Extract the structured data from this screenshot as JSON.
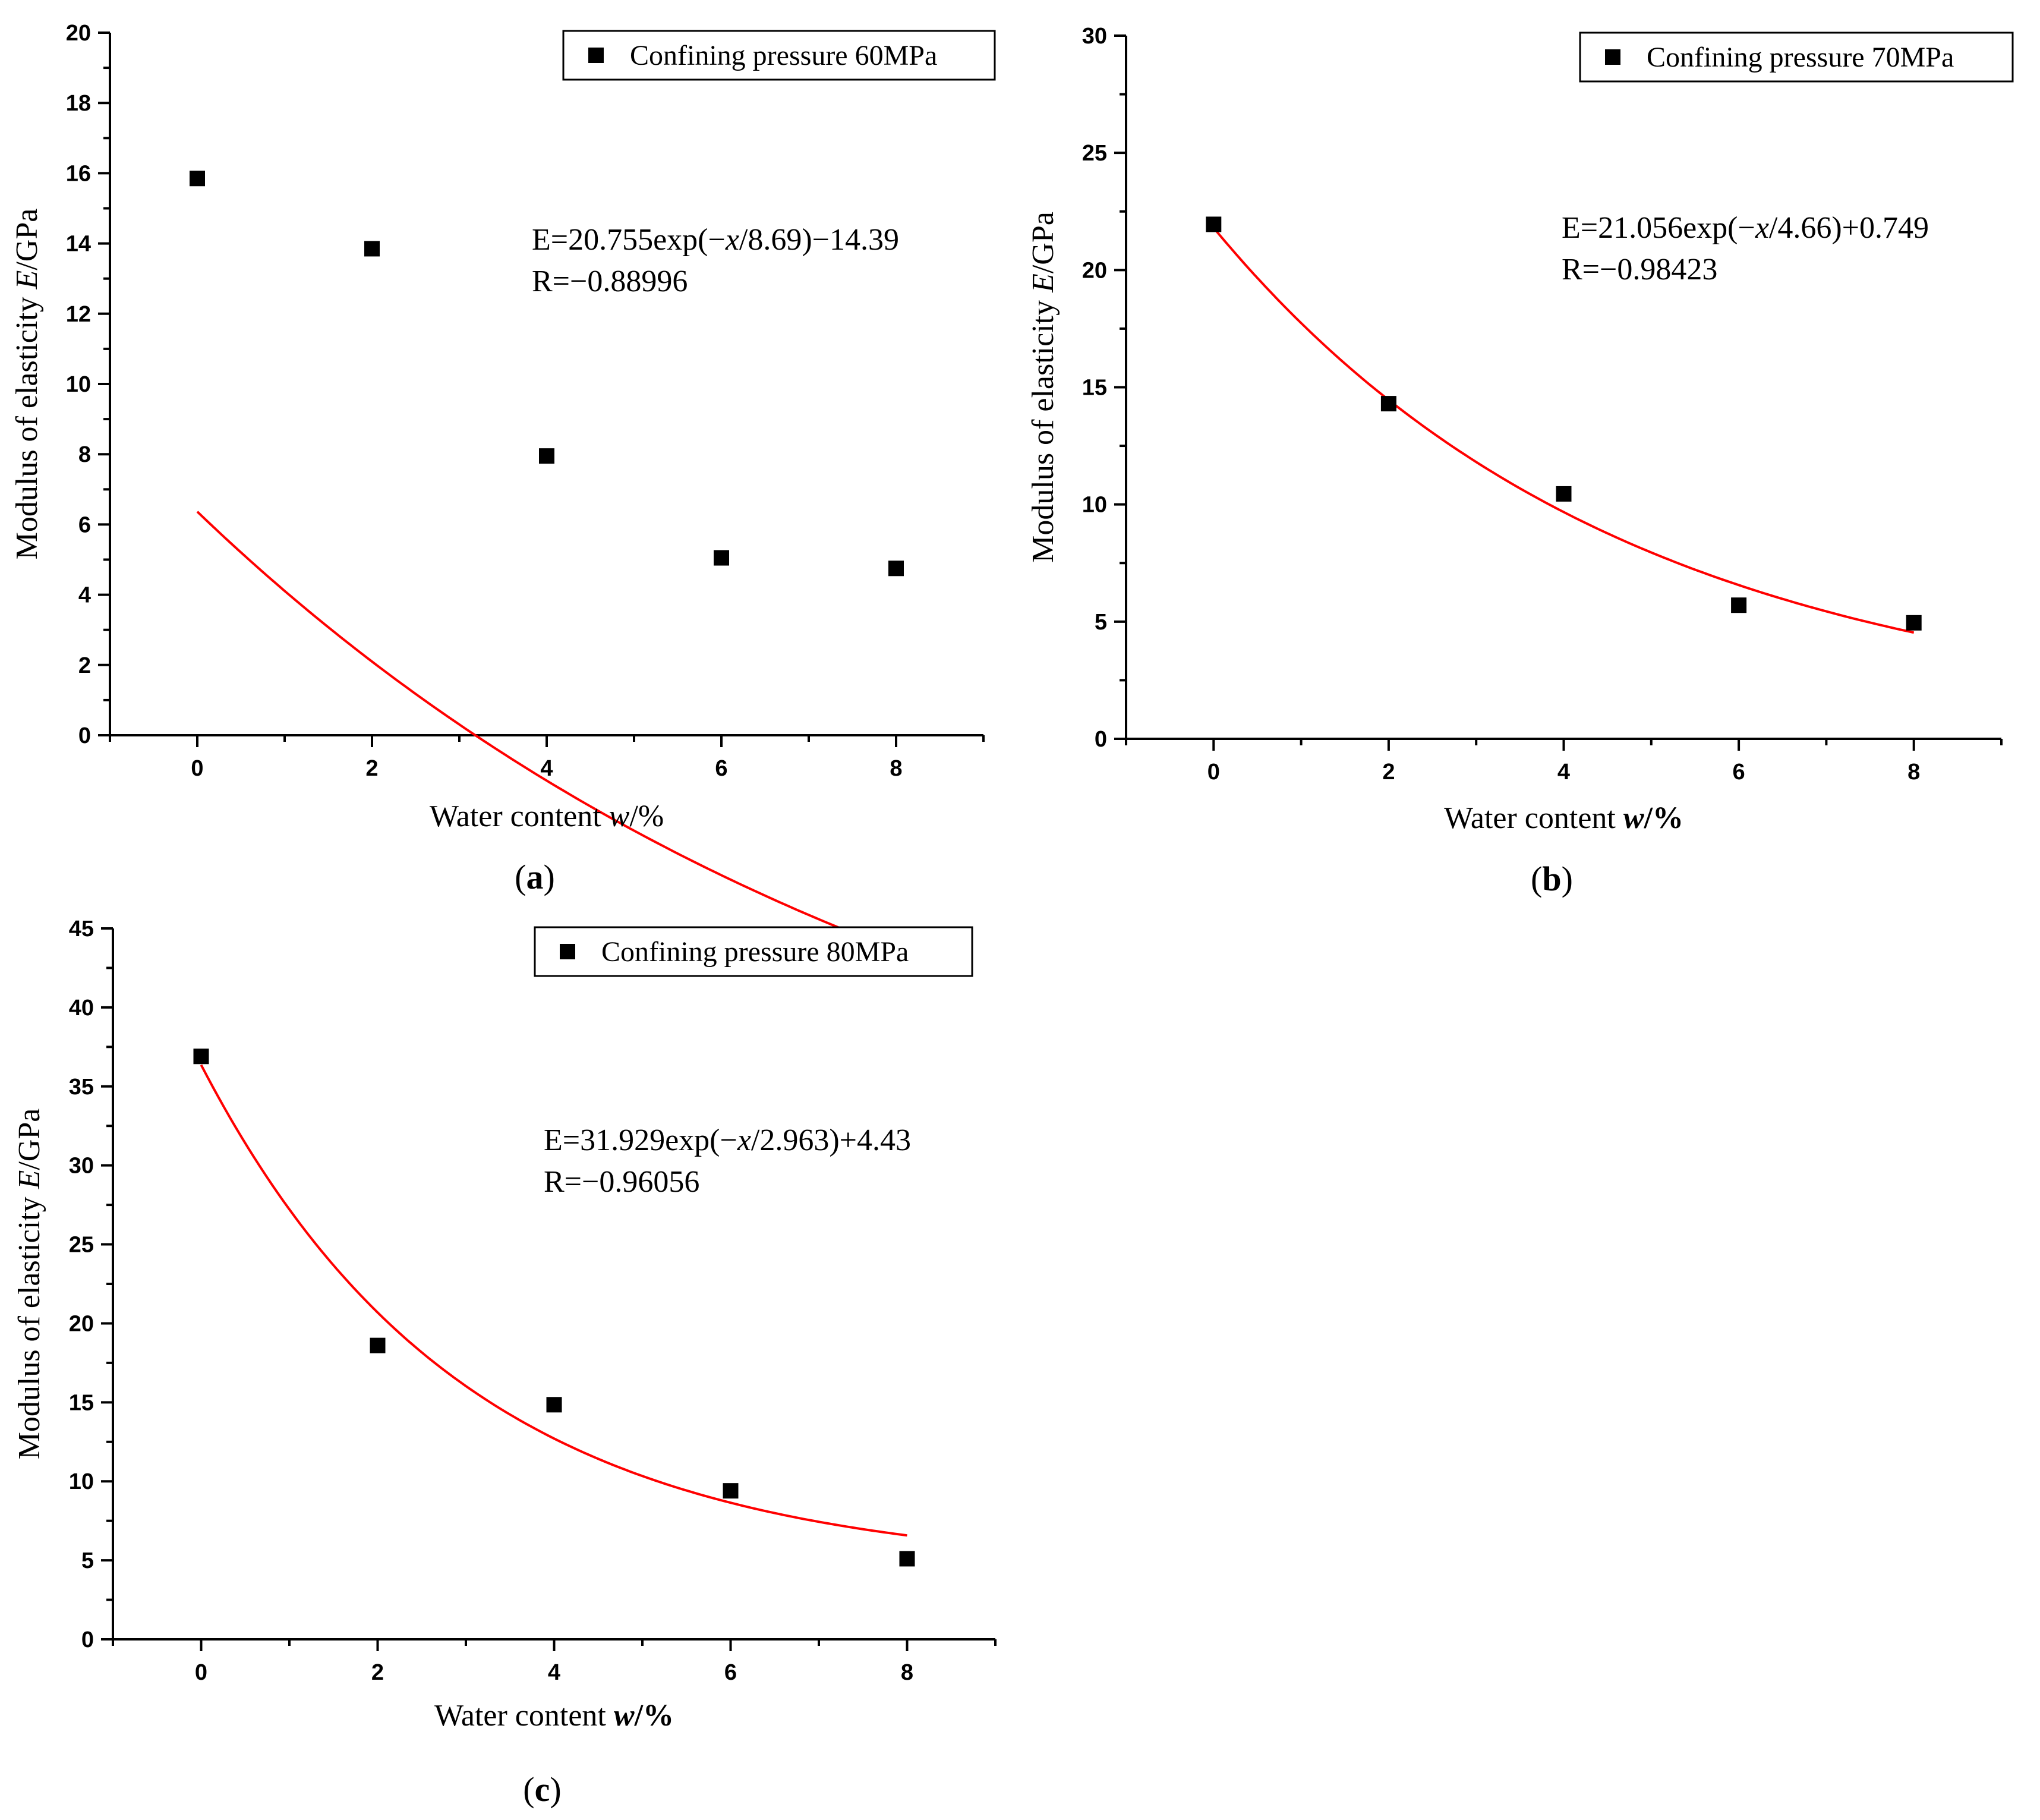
{
  "figure": {
    "marker_color": "#000000",
    "fit_color": "#ff0000"
  },
  "chart_data": [
    {
      "id": "a",
      "type": "scatter",
      "panel_label": "a",
      "title": "",
      "xlabel": "Water content",
      "xvar": "w",
      "xunit": "/%",
      "ylabel": "Modulus of elasticity",
      "yvar": "E",
      "yunit": "/GPa",
      "xlim": [
        -1,
        9
      ],
      "ylim": [
        0,
        20
      ],
      "xticks": [
        0,
        2,
        4,
        6,
        8
      ],
      "yticks": [
        0,
        2,
        4,
        6,
        8,
        10,
        12,
        14,
        16,
        18,
        20
      ],
      "legend": "Confining pressure 60MPa",
      "legend_position": "top-right",
      "series": [
        {
          "name": "Confining pressure 60MPa",
          "x": [
            0,
            2,
            4,
            6,
            8
          ],
          "y": [
            15.85,
            13.85,
            7.95,
            5.05,
            4.75
          ]
        }
      ],
      "fit": {
        "model": "exp",
        "A": 20.755,
        "t": 8.69,
        "y0": -14.39,
        "x_range": [
          0,
          8
        ]
      },
      "equation": {
        "prefix": "E=20.755exp(−",
        "var": "x",
        "suffix": "/8.69)−14.39"
      },
      "r_text": "R=−0.88996"
    },
    {
      "id": "b",
      "type": "scatter",
      "panel_label": "b",
      "title": "",
      "xlabel": "Water content",
      "xvar": "w",
      "xunit": "/%",
      "ylabel": "Modulus of elasticity",
      "yvar": "E",
      "yunit": "/GPa",
      "xlim": [
        -1,
        9
      ],
      "ylim": [
        0,
        30
      ],
      "xticks": [
        0,
        2,
        4,
        6,
        8
      ],
      "yticks": [
        0,
        5,
        10,
        15,
        20,
        25,
        30
      ],
      "legend": "Confining pressure  70MPa",
      "legend_position": "top-right",
      "series": [
        {
          "name": "Confining pressure 70MPa",
          "x": [
            0,
            2,
            4,
            6,
            8
          ],
          "y": [
            21.95,
            14.3,
            10.45,
            5.7,
            4.95
          ]
        }
      ],
      "fit": {
        "model": "exp",
        "A": 21.056,
        "t": 4.66,
        "y0": 0.749,
        "x_range": [
          0,
          8
        ]
      },
      "equation": {
        "prefix": "E=21.056exp(−",
        "var": "x",
        "suffix": "/4.66)+0.749"
      },
      "r_text": "R=−0.98423"
    },
    {
      "id": "c",
      "type": "scatter",
      "panel_label": "c",
      "title": "",
      "xlabel": "Water content",
      "xvar": "w",
      "xunit": "/%",
      "ylabel": "Modulus of elasticity",
      "yvar": "E",
      "yunit": "/GPa",
      "xlim": [
        -1,
        9
      ],
      "ylim": [
        0,
        45
      ],
      "xticks": [
        0,
        2,
        4,
        6,
        8
      ],
      "yticks": [
        0,
        5,
        10,
        15,
        20,
        25,
        30,
        35,
        40,
        45
      ],
      "legend": "Confining pressure 80MPa",
      "legend_position": "top-right",
      "series": [
        {
          "name": "Confining pressure 80MPa",
          "x": [
            0,
            2,
            4,
            6,
            8
          ],
          "y": [
            36.9,
            18.6,
            14.85,
            9.4,
            5.1
          ]
        }
      ],
      "fit": {
        "model": "exp",
        "A": 31.929,
        "t": 2.963,
        "y0": 4.43,
        "x_range": [
          0,
          8
        ]
      },
      "equation": {
        "prefix": "E=31.929exp(−",
        "var": "x",
        "suffix": "/2.963)+4.43"
      },
      "r_text": "R=−0.96056"
    }
  ]
}
